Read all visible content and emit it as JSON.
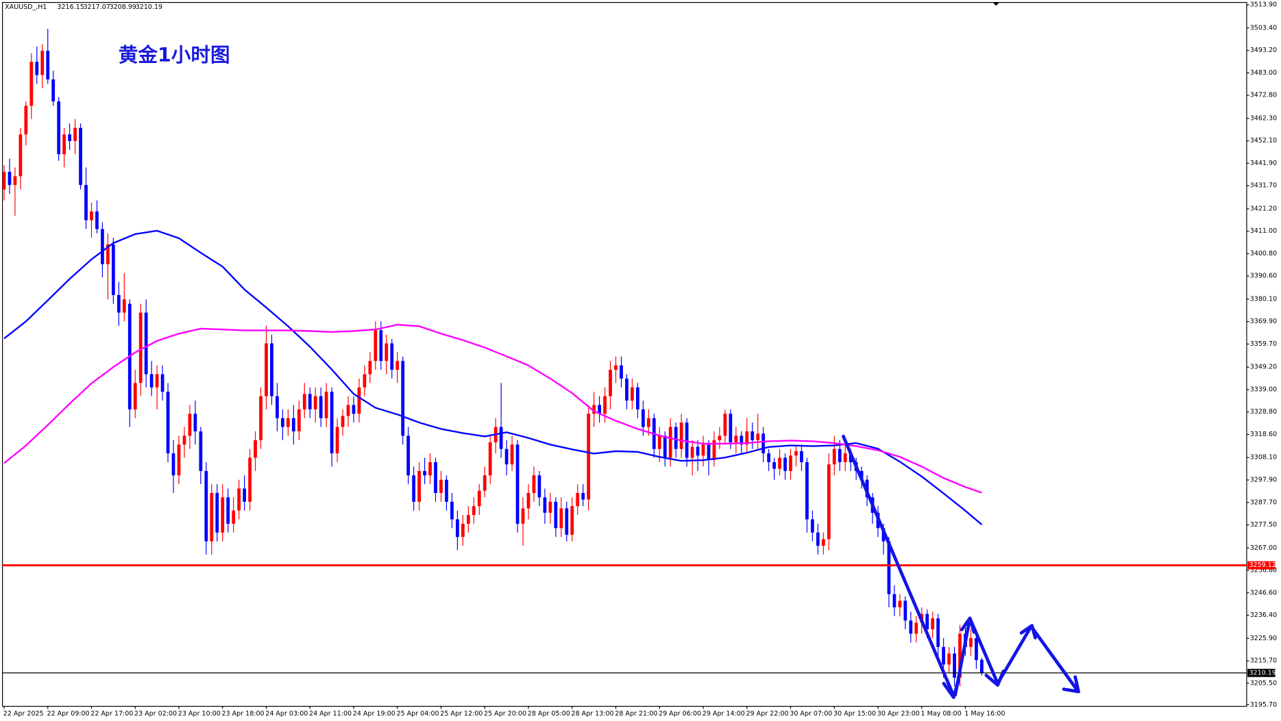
{
  "chart_data": {
    "type": "candlestick",
    "title": "黄金1小时图",
    "symbol": "XAUUSD_,H1",
    "up_color": "#ff0000",
    "down_color": "#0000ff",
    "ylim": [
      3195,
      3515
    ],
    "yticks": [
      {
        "value": 3513.9,
        "label": "3513.90"
      },
      {
        "value": 3503.4,
        "label": "3503.40"
      },
      {
        "value": 3493.2,
        "label": "3493.20"
      },
      {
        "value": 3483.0,
        "label": "3483.00"
      },
      {
        "value": 3472.8,
        "label": "3472.80"
      },
      {
        "value": 3462.3,
        "label": "3462.30"
      },
      {
        "value": 3452.1,
        "label": "3452.10"
      },
      {
        "value": 3441.9,
        "label": "3441.90"
      },
      {
        "value": 3431.7,
        "label": "3431.70"
      },
      {
        "value": 3421.2,
        "label": "3421.20"
      },
      {
        "value": 3411.0,
        "label": "3411.00"
      },
      {
        "value": 3400.8,
        "label": "3400.80"
      },
      {
        "value": 3390.6,
        "label": "3390.60"
      },
      {
        "value": 3380.1,
        "label": "3380.10"
      },
      {
        "value": 3369.9,
        "label": "3369.90"
      },
      {
        "value": 3359.7,
        "label": "3359.70"
      },
      {
        "value": 3349.2,
        "label": "3349.20"
      },
      {
        "value": 3339.0,
        "label": "3339.00"
      },
      {
        "value": 3328.8,
        "label": "3328.80"
      },
      {
        "value": 3318.6,
        "label": "3318.60"
      },
      {
        "value": 3308.1,
        "label": "3308.10"
      },
      {
        "value": 3297.9,
        "label": "3297.90"
      },
      {
        "value": 3287.7,
        "label": "3287.70"
      },
      {
        "value": 3277.5,
        "label": "3277.50"
      },
      {
        "value": 3267.0,
        "label": "3267.00"
      },
      {
        "value": 3256.8,
        "label": "3256.80"
      },
      {
        "value": 3246.6,
        "label": "3246.60"
      },
      {
        "value": 3236.4,
        "label": "3236.40"
      },
      {
        "value": 3225.9,
        "label": "3225.90"
      },
      {
        "value": 3215.7,
        "label": "3215.70"
      },
      {
        "value": 3205.5,
        "label": "3205.50"
      },
      {
        "value": 3195.7,
        "label": "3195.70"
      }
    ],
    "x_labels": [
      "22 Apr 2025",
      "22 Apr 09:00",
      "22 Apr 17:00",
      "23 Apr 02:00",
      "23 Apr 10:00",
      "23 Apr 18:00",
      "24 Apr 03:00",
      "24 Apr 11:00",
      "24 Apr 19:00",
      "25 Apr 04:00",
      "25 Apr 12:00",
      "25 Apr 20:00",
      "28 Apr 05:00",
      "28 Apr 13:00",
      "28 Apr 21:00",
      "29 Apr 06:00",
      "29 Apr 14:00",
      "29 Apr 22:00",
      "30 Apr 07:00",
      "30 Apr 15:00",
      "30 Apr 23:00",
      "1 May 08:00",
      "1 May 16:00"
    ],
    "candles": [
      [
        3430,
        3441,
        3425,
        3438
      ],
      [
        3438,
        3444,
        3428,
        3432
      ],
      [
        3432,
        3440,
        3418,
        3436
      ],
      [
        3436,
        3458,
        3430,
        3455
      ],
      [
        3455,
        3470,
        3450,
        3468
      ],
      [
        3468,
        3492,
        3462,
        3488
      ],
      [
        3488,
        3495,
        3478,
        3482
      ],
      [
        3482,
        3496,
        3476,
        3493
      ],
      [
        3493,
        3503,
        3478,
        3480
      ],
      [
        3480,
        3484,
        3468,
        3470
      ],
      [
        3470,
        3472,
        3443,
        3446
      ],
      [
        3446,
        3458,
        3440,
        3455
      ],
      [
        3455,
        3460,
        3448,
        3452
      ],
      [
        3452,
        3462,
        3446,
        3458
      ],
      [
        3458,
        3460,
        3430,
        3432
      ],
      [
        3432,
        3440,
        3412,
        3416
      ],
      [
        3416,
        3424,
        3408,
        3420
      ],
      [
        3420,
        3425,
        3410,
        3412
      ],
      [
        3412,
        3415,
        3390,
        3396
      ],
      [
        3396,
        3410,
        3380,
        3405
      ],
      [
        3405,
        3408,
        3378,
        3382
      ],
      [
        3382,
        3388,
        3368,
        3374
      ],
      [
        3374,
        3392,
        3370,
        3380
      ],
      [
        3378,
        3380,
        3322,
        3330
      ],
      [
        3330,
        3348,
        3326,
        3342
      ],
      [
        3342,
        3378,
        3336,
        3374
      ],
      [
        3374,
        3380,
        3340,
        3346
      ],
      [
        3346,
        3352,
        3336,
        3340
      ],
      [
        3340,
        3350,
        3330,
        3346
      ],
      [
        3346,
        3350,
        3334,
        3338
      ],
      [
        3338,
        3342,
        3306,
        3310
      ],
      [
        3310,
        3316,
        3292,
        3300
      ],
      [
        3300,
        3318,
        3296,
        3314
      ],
      [
        3314,
        3322,
        3308,
        3318
      ],
      [
        3318,
        3332,
        3312,
        3328
      ],
      [
        3328,
        3334,
        3314,
        3320
      ],
      [
        3320,
        3322,
        3296,
        3302
      ],
      [
        3302,
        3306,
        3264,
        3270
      ],
      [
        3270,
        3296,
        3264,
        3292
      ],
      [
        3292,
        3296,
        3270,
        3274
      ],
      [
        3274,
        3296,
        3270,
        3290
      ],
      [
        3290,
        3294,
        3274,
        3278
      ],
      [
        3278,
        3290,
        3274,
        3284
      ],
      [
        3284,
        3298,
        3280,
        3294
      ],
      [
        3294,
        3300,
        3284,
        3288
      ],
      [
        3288,
        3312,
        3284,
        3308
      ],
      [
        3308,
        3320,
        3302,
        3316
      ],
      [
        3316,
        3340,
        3312,
        3336
      ],
      [
        3336,
        3368,
        3330,
        3360
      ],
      [
        3360,
        3364,
        3332,
        3336
      ],
      [
        3336,
        3342,
        3320,
        3326
      ],
      [
        3326,
        3330,
        3316,
        3322
      ],
      [
        3322,
        3330,
        3318,
        3326
      ],
      [
        3326,
        3332,
        3314,
        3320
      ],
      [
        3320,
        3334,
        3316,
        3330
      ],
      [
        3330,
        3342,
        3326,
        3337
      ],
      [
        3337,
        3340,
        3326,
        3330
      ],
      [
        3330,
        3340,
        3324,
        3336
      ],
      [
        3336,
        3340,
        3322,
        3326
      ],
      [
        3326,
        3342,
        3322,
        3338
      ],
      [
        3338,
        3340,
        3304,
        3310
      ],
      [
        3310,
        3326,
        3306,
        3322
      ],
      [
        3322,
        3330,
        3318,
        3327
      ],
      [
        3327,
        3336,
        3322,
        3332
      ],
      [
        3332,
        3336,
        3324,
        3328
      ],
      [
        3328,
        3344,
        3324,
        3340
      ],
      [
        3340,
        3350,
        3336,
        3346
      ],
      [
        3346,
        3356,
        3342,
        3352
      ],
      [
        3352,
        3370,
        3348,
        3366
      ],
      [
        3366,
        3370,
        3348,
        3352
      ],
      [
        3352,
        3364,
        3346,
        3360
      ],
      [
        3360,
        3362,
        3344,
        3348
      ],
      [
        3348,
        3356,
        3342,
        3352
      ],
      [
        3352,
        3354,
        3314,
        3318
      ],
      [
        3318,
        3322,
        3296,
        3300
      ],
      [
        3300,
        3304,
        3284,
        3288
      ],
      [
        3288,
        3306,
        3284,
        3302
      ],
      [
        3302,
        3308,
        3296,
        3300
      ],
      [
        3300,
        3310,
        3296,
        3306
      ],
      [
        3306,
        3308,
        3288,
        3292
      ],
      [
        3292,
        3302,
        3288,
        3298
      ],
      [
        3298,
        3300,
        3284,
        3288
      ],
      [
        3288,
        3292,
        3276,
        3280
      ],
      [
        3280,
        3284,
        3266,
        3272
      ],
      [
        3272,
        3282,
        3268,
        3278
      ],
      [
        3278,
        3286,
        3274,
        3282
      ],
      [
        3282,
        3290,
        3278,
        3286
      ],
      [
        3286,
        3296,
        3282,
        3293
      ],
      [
        3293,
        3304,
        3290,
        3300
      ],
      [
        3300,
        3318,
        3296,
        3315
      ],
      [
        3315,
        3326,
        3310,
        3322
      ],
      [
        3322,
        3342,
        3308,
        3312
      ],
      [
        3312,
        3316,
        3300,
        3305
      ],
      [
        3305,
        3318,
        3302,
        3314
      ],
      [
        3314,
        3316,
        3274,
        3278
      ],
      [
        3278,
        3290,
        3268,
        3285
      ],
      [
        3285,
        3296,
        3280,
        3292
      ],
      [
        3292,
        3304,
        3288,
        3300
      ],
      [
        3300,
        3302,
        3286,
        3290
      ],
      [
        3290,
        3294,
        3278,
        3283
      ],
      [
        3283,
        3292,
        3278,
        3288
      ],
      [
        3288,
        3290,
        3272,
        3276
      ],
      [
        3276,
        3290,
        3272,
        3285
      ],
      [
        3285,
        3288,
        3270,
        3273
      ],
      [
        3273,
        3290,
        3270,
        3286
      ],
      [
        3286,
        3296,
        3282,
        3292
      ],
      [
        3292,
        3296,
        3286,
        3289
      ],
      [
        3289,
        3332,
        3284,
        3328
      ],
      [
        3328,
        3338,
        3322,
        3332
      ],
      [
        3332,
        3336,
        3324,
        3328
      ],
      [
        3328,
        3340,
        3324,
        3336
      ],
      [
        3336,
        3352,
        3330,
        3348
      ],
      [
        3348,
        3354,
        3342,
        3350
      ],
      [
        3350,
        3354,
        3340,
        3344
      ],
      [
        3344,
        3346,
        3330,
        3334
      ],
      [
        3334,
        3344,
        3330,
        3340
      ],
      [
        3340,
        3342,
        3326,
        3330
      ],
      [
        3330,
        3334,
        3318,
        3322
      ],
      [
        3322,
        3330,
        3318,
        3326
      ],
      [
        3326,
        3328,
        3308,
        3312
      ],
      [
        3312,
        3322,
        3306,
        3318
      ],
      [
        3318,
        3320,
        3304,
        3308
      ],
      [
        3308,
        3326,
        3304,
        3322
      ],
      [
        3322,
        3324,
        3308,
        3312
      ],
      [
        3312,
        3328,
        3308,
        3324
      ],
      [
        3324,
        3326,
        3304,
        3308
      ],
      [
        3308,
        3316,
        3300,
        3313
      ],
      [
        3313,
        3316,
        3302,
        3309
      ],
      [
        3309,
        3318,
        3304,
        3314
      ],
      [
        3314,
        3316,
        3300,
        3307
      ],
      [
        3307,
        3320,
        3304,
        3316
      ],
      [
        3316,
        3322,
        3312,
        3318
      ],
      [
        3318,
        3330,
        3314,
        3328
      ],
      [
        3328,
        3330,
        3312,
        3315
      ],
      [
        3315,
        3322,
        3310,
        3318
      ],
      [
        3318,
        3320,
        3310,
        3314
      ],
      [
        3314,
        3326,
        3310,
        3320
      ],
      [
        3320,
        3324,
        3312,
        3316
      ],
      [
        3316,
        3328,
        3312,
        3319
      ],
      [
        3319,
        3322,
        3306,
        3310
      ],
      [
        3310,
        3312,
        3302,
        3306
      ],
      [
        3306,
        3308,
        3298,
        3303
      ],
      [
        3303,
        3312,
        3300,
        3308
      ],
      [
        3308,
        3310,
        3298,
        3302
      ],
      [
        3302,
        3312,
        3298,
        3309
      ],
      [
        3309,
        3314,
        3304,
        3311
      ],
      [
        3311,
        3314,
        3302,
        3306
      ],
      [
        3306,
        3308,
        3274,
        3280
      ],
      [
        3280,
        3284,
        3270,
        3274
      ],
      [
        3274,
        3278,
        3264,
        3268
      ],
      [
        3268,
        3274,
        3264,
        3271
      ],
      [
        3271,
        3310,
        3266,
        3305
      ],
      [
        3305,
        3318,
        3300,
        3312
      ],
      [
        3312,
        3316,
        3302,
        3306
      ],
      [
        3306,
        3314,
        3302,
        3310
      ],
      [
        3310,
        3312,
        3302,
        3306
      ],
      [
        3306,
        3308,
        3298,
        3302
      ],
      [
        3302,
        3304,
        3294,
        3298
      ],
      [
        3298,
        3300,
        3286,
        3290
      ],
      [
        3290,
        3292,
        3278,
        3283
      ],
      [
        3283,
        3286,
        3272,
        3276
      ],
      [
        3276,
        3278,
        3264,
        3270
      ],
      [
        3270,
        3272,
        3240,
        3246
      ],
      [
        3246,
        3250,
        3236,
        3240
      ],
      [
        3240,
        3246,
        3236,
        3243
      ],
      [
        3243,
        3245,
        3230,
        3234
      ],
      [
        3234,
        3238,
        3224,
        3228
      ],
      [
        3228,
        3236,
        3224,
        3233
      ],
      [
        3233,
        3240,
        3228,
        3237
      ],
      [
        3237,
        3239,
        3226,
        3230
      ],
      [
        3230,
        3238,
        3226,
        3235
      ],
      [
        3235,
        3237,
        3218,
        3222
      ],
      [
        3222,
        3226,
        3208,
        3214
      ],
      [
        3214,
        3222,
        3210,
        3219
      ],
      [
        3219,
        3222,
        3204,
        3208
      ],
      [
        3208,
        3232,
        3204,
        3228
      ],
      [
        3228,
        3232,
        3218,
        3222
      ],
      [
        3222,
        3230,
        3218,
        3226
      ],
      [
        3226,
        3228,
        3212,
        3216
      ],
      [
        3216.15,
        3217.07,
        3208.99,
        3210.19
      ]
    ],
    "series": [
      {
        "color": "#0000ff",
        "x": [
          0,
          4,
          8,
          12,
          16,
          20,
          24,
          28,
          32,
          36,
          40,
          44,
          48,
          52,
          56,
          60,
          64,
          68,
          72,
          76,
          80,
          84,
          88,
          92,
          96,
          100,
          104,
          108,
          112,
          116,
          120,
          124,
          128,
          132,
          136,
          140,
          144,
          148,
          152,
          156,
          160,
          164,
          168,
          172,
          176,
          179
        ],
        "values": [
          3362.2,
          3370.0,
          3379.6,
          3389.3,
          3398.2,
          3405.6,
          3409.7,
          3411.2,
          3407.8,
          3401.2,
          3394.9,
          3384.5,
          3376.3,
          3367.8,
          3358.5,
          3348.1,
          3337.0,
          3330.7,
          3327.7,
          3324.0,
          3321.1,
          3319.2,
          3317.7,
          3319.6,
          3317.0,
          3314.0,
          3311.8,
          3309.9,
          3311.0,
          3310.7,
          3308.4,
          3306.6,
          3306.9,
          3308.1,
          3310.3,
          3312.9,
          3313.6,
          3313.3,
          3313.6,
          3314.7,
          3312.1,
          3306.2,
          3299.5,
          3291.8,
          3283.9,
          3277.6
        ]
      },
      {
        "color": "#ff00ff",
        "x": [
          0,
          4,
          8,
          12,
          16,
          20,
          24,
          28,
          32,
          36,
          40,
          44,
          48,
          52,
          56,
          60,
          64,
          68,
          72,
          76,
          80,
          84,
          88,
          92,
          96,
          100,
          104,
          108,
          112,
          116,
          120,
          124,
          128,
          132,
          136,
          140,
          144,
          148,
          152,
          156,
          160,
          164,
          168,
          172,
          176,
          179
        ],
        "values": [
          3305.5,
          3313.6,
          3322.9,
          3332.6,
          3341.8,
          3349.2,
          3355.9,
          3361.1,
          3364.4,
          3366.7,
          3366.3,
          3365.9,
          3365.9,
          3365.9,
          3365.6,
          3365.2,
          3365.6,
          3366.3,
          3368.5,
          3367.8,
          3364.4,
          3361.5,
          3358.1,
          3354.1,
          3350.0,
          3344.0,
          3337.4,
          3329.2,
          3324.8,
          3321.1,
          3318.1,
          3315.8,
          3314.4,
          3314.4,
          3314.7,
          3315.5,
          3315.8,
          3315.5,
          3314.7,
          3313.3,
          3311.4,
          3308.4,
          3304.0,
          3298.8,
          3294.7,
          3292.1
        ]
      }
    ],
    "levels": [
      {
        "value": 3259.12,
        "color": "#ff0000"
      },
      {
        "value": 3210.19,
        "color": "#000000"
      }
    ]
  }
}
